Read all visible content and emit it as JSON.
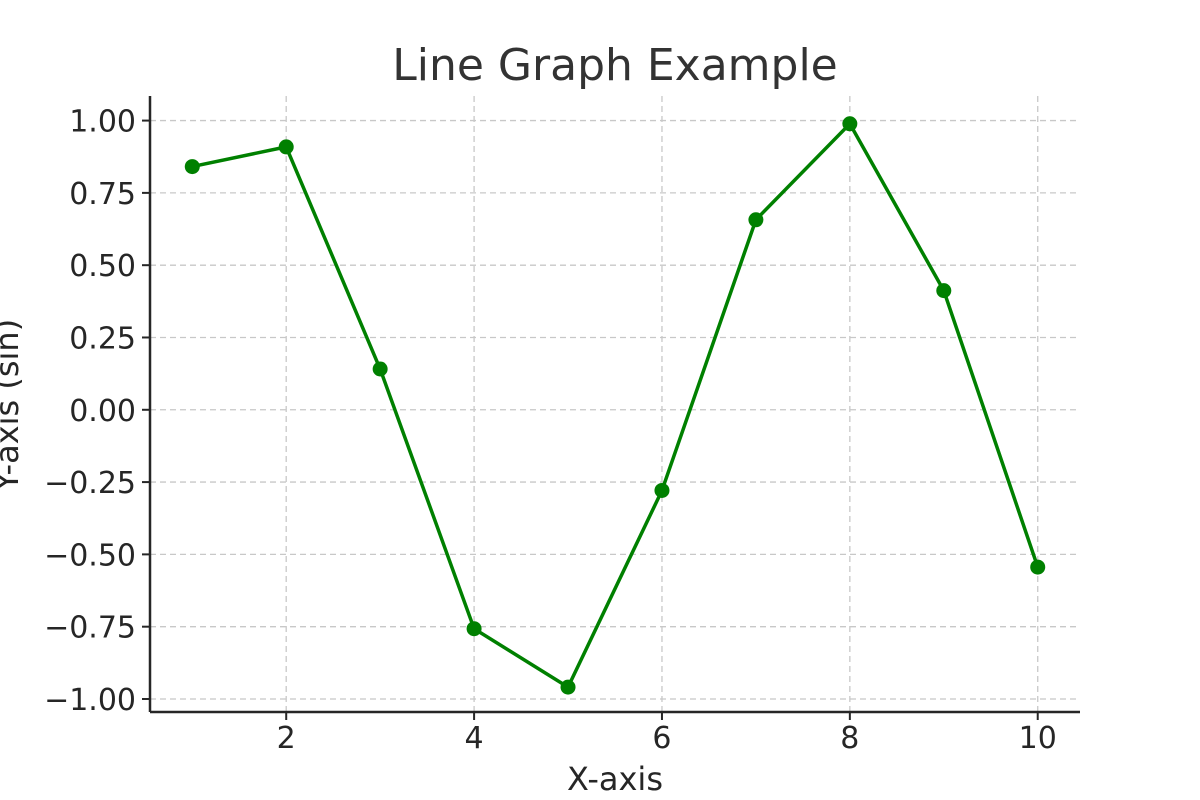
{
  "chart_data": {
    "type": "line",
    "title": "Line Graph Example",
    "xlabel": "X-axis",
    "ylabel": "Y-axis (sin)",
    "xlim": [
      0.55,
      10.45
    ],
    "ylim": [
      -1.045,
      1.085
    ],
    "xticks": [
      2,
      4,
      6,
      8,
      10
    ],
    "xtick_labels": [
      "2",
      "4",
      "6",
      "8",
      "10"
    ],
    "yticks": [
      -1.0,
      -0.75,
      -0.5,
      -0.25,
      0.0,
      0.25,
      0.5,
      0.75,
      1.0
    ],
    "ytick_labels": [
      "−1.00",
      "−0.75",
      "−0.50",
      "−0.25",
      "0.00",
      "0.25",
      "0.50",
      "0.75",
      "1.00"
    ],
    "grid": true,
    "series": [
      {
        "color": "#008000",
        "marker": "circle",
        "x": [
          1,
          2,
          3,
          4,
          5,
          6,
          7,
          8,
          9,
          10
        ],
        "y": [
          0.841,
          0.909,
          0.141,
          -0.757,
          -0.959,
          -0.279,
          0.657,
          0.989,
          0.412,
          -0.544
        ]
      }
    ]
  }
}
